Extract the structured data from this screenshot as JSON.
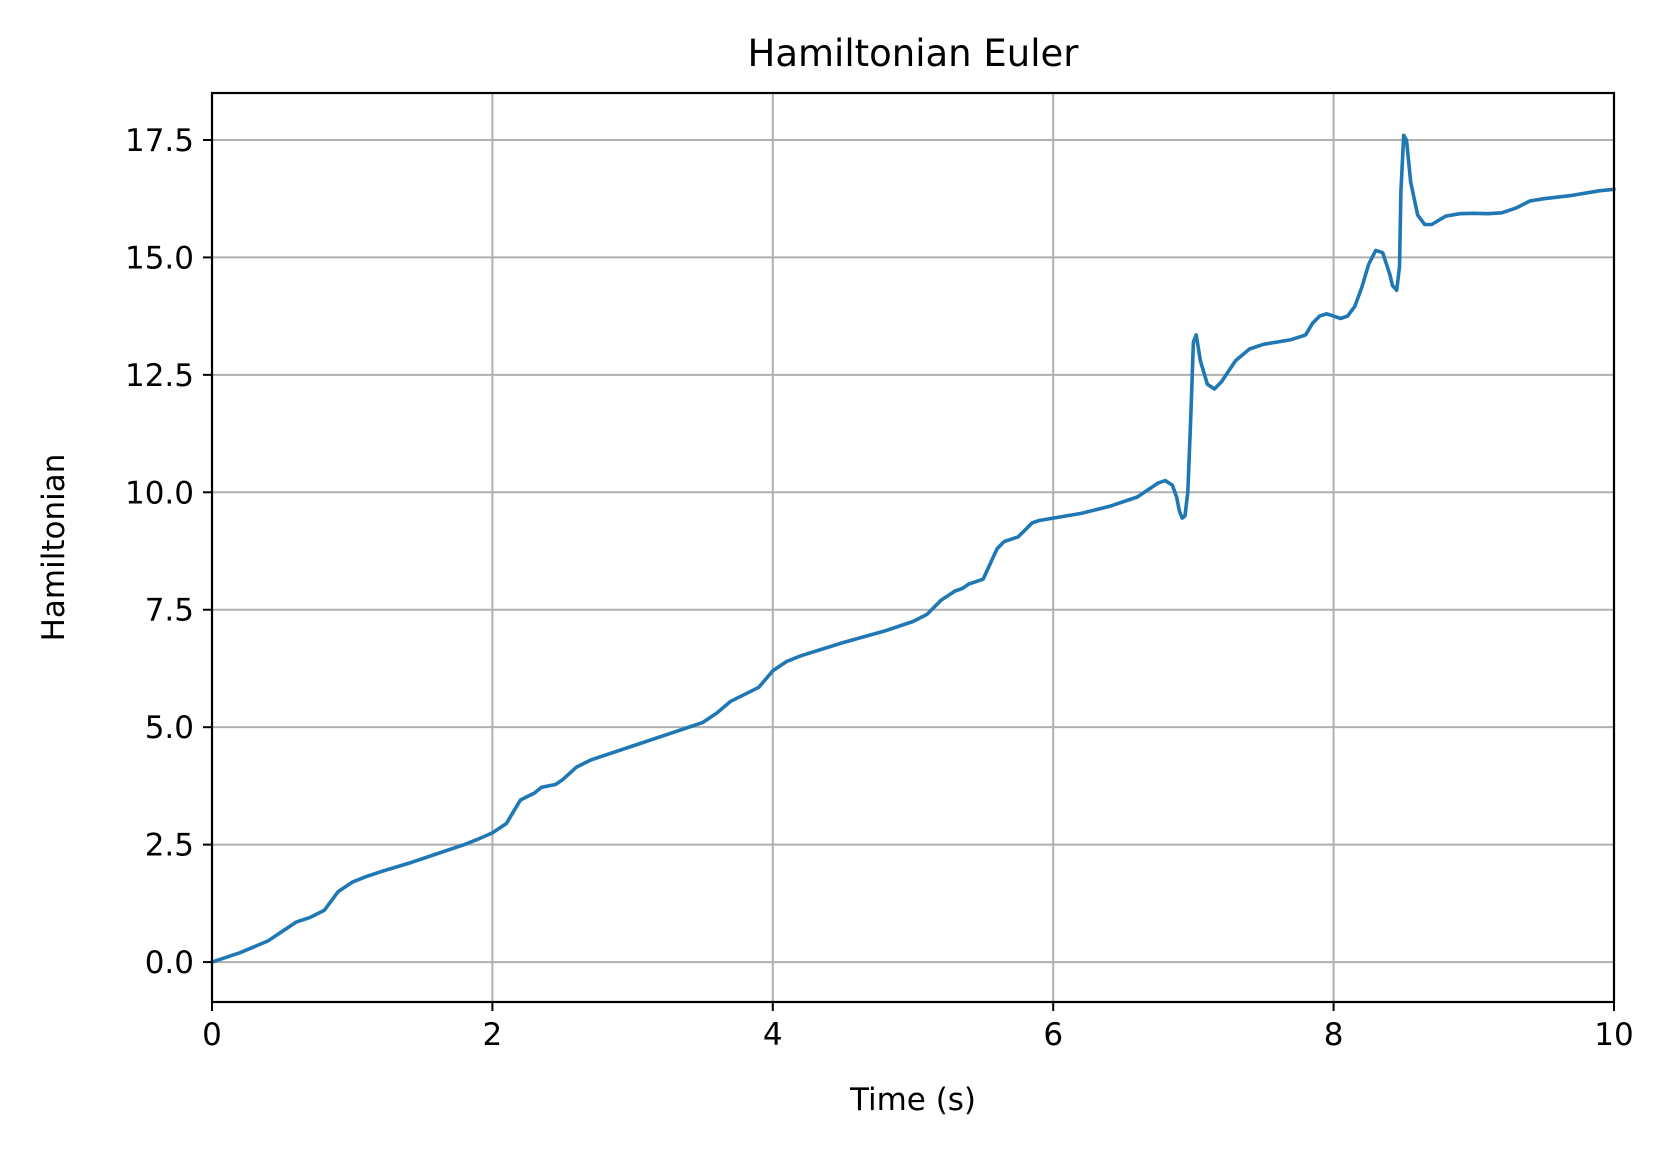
{
  "chart_data": {
    "type": "line",
    "title": "Hamiltonian Euler",
    "xlabel": "Time (s)",
    "ylabel": "Hamiltonian",
    "xlim": [
      0,
      10
    ],
    "ylim": [
      -0.85,
      18.5
    ],
    "x_ticks": [
      0,
      2,
      4,
      6,
      8,
      10
    ],
    "x_tick_labels": [
      "0",
      "2",
      "4",
      "6",
      "8",
      "10"
    ],
    "y_ticks": [
      0,
      2.5,
      5,
      7.5,
      10,
      12.5,
      15,
      17.5
    ],
    "y_tick_labels": [
      "0.0",
      "2.5",
      "5.0",
      "7.5",
      "10.0",
      "12.5",
      "15.0",
      "17.5"
    ],
    "grid": true,
    "legend": "none",
    "colors": {
      "series": "#1f77b4",
      "grid": "#b0b0b0",
      "axes": "#000000"
    },
    "series": [
      {
        "color": "#1f77b4",
        "x": [
          0,
          0.2,
          0.4,
          0.5,
          0.6,
          0.7,
          0.8,
          0.9,
          1.0,
          1.1,
          1.2,
          1.4,
          1.6,
          1.8,
          1.9,
          2.0,
          2.1,
          2.2,
          2.3,
          2.35,
          2.4,
          2.45,
          2.5,
          2.6,
          2.7,
          3.0,
          3.3,
          3.5,
          3.6,
          3.7,
          3.8,
          3.9,
          4.0,
          4.1,
          4.2,
          4.5,
          4.8,
          5.0,
          5.1,
          5.2,
          5.3,
          5.35,
          5.4,
          5.45,
          5.5,
          5.6,
          5.65,
          5.75,
          5.8,
          5.85,
          5.9,
          6.0,
          6.2,
          6.4,
          6.6,
          6.7,
          6.75,
          6.8,
          6.85,
          6.88,
          6.9,
          6.92,
          6.94,
          6.96,
          6.98,
          7.0,
          7.02,
          7.05,
          7.1,
          7.15,
          7.2,
          7.3,
          7.4,
          7.5,
          7.6,
          7.7,
          7.8,
          7.85,
          7.9,
          7.95,
          8.0,
          8.05,
          8.1,
          8.15,
          8.2,
          8.25,
          8.3,
          8.35,
          8.4,
          8.42,
          8.45,
          8.47,
          8.48,
          8.5,
          8.52,
          8.55,
          8.6,
          8.65,
          8.7,
          8.8,
          8.9,
          9.0,
          9.1,
          9.2,
          9.3,
          9.4,
          9.5,
          9.7,
          9.9,
          10.0
        ],
        "y": [
          0.0,
          0.2,
          0.45,
          0.65,
          0.85,
          0.95,
          1.1,
          1.5,
          1.7,
          1.82,
          1.92,
          2.1,
          2.3,
          2.5,
          2.62,
          2.75,
          2.95,
          3.45,
          3.6,
          3.72,
          3.75,
          3.78,
          3.88,
          4.15,
          4.3,
          4.6,
          4.9,
          5.1,
          5.3,
          5.55,
          5.7,
          5.85,
          6.2,
          6.4,
          6.52,
          6.8,
          7.05,
          7.25,
          7.4,
          7.7,
          7.9,
          7.95,
          8.05,
          8.1,
          8.15,
          8.8,
          8.95,
          9.05,
          9.2,
          9.35,
          9.4,
          9.45,
          9.55,
          9.7,
          9.9,
          10.1,
          10.2,
          10.25,
          10.15,
          9.9,
          9.6,
          9.45,
          9.5,
          10.0,
          11.5,
          13.2,
          13.35,
          12.8,
          12.3,
          12.2,
          12.35,
          12.8,
          13.05,
          13.15,
          13.2,
          13.25,
          13.35,
          13.6,
          13.75,
          13.8,
          13.75,
          13.7,
          13.75,
          13.95,
          14.35,
          14.85,
          15.15,
          15.1,
          14.65,
          14.4,
          14.3,
          14.8,
          16.4,
          17.6,
          17.5,
          16.6,
          15.9,
          15.7,
          15.7,
          15.88,
          15.93,
          15.94,
          15.93,
          15.95,
          16.05,
          16.2,
          16.25,
          16.32,
          16.42,
          16.45
        ]
      }
    ]
  }
}
